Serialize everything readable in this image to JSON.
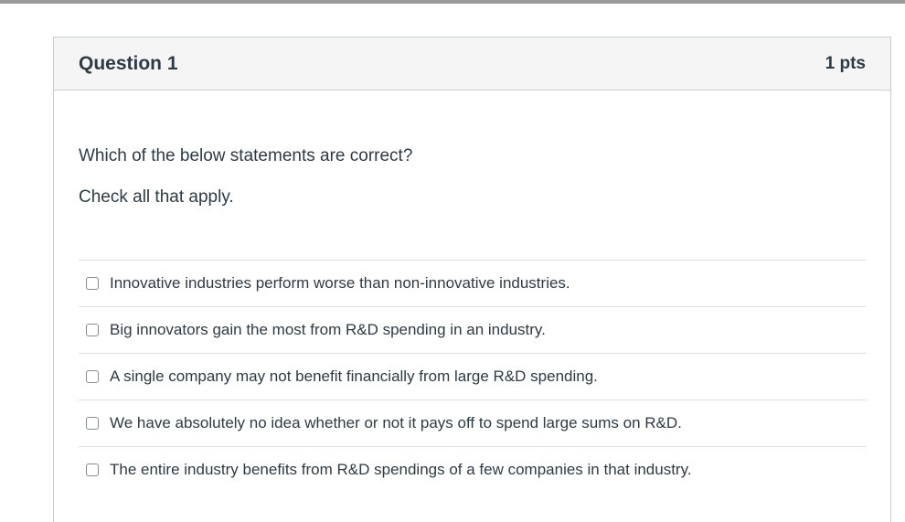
{
  "page": {
    "top_bar_color": "#9b9b9b",
    "background": "#ffffff"
  },
  "colors": {
    "ink": "#2d3b45",
    "header_background": "#f5f5f5",
    "card_border": "#c7cdd1",
    "divider": "#dde0e2",
    "checkbox_border": "#848c94"
  },
  "question": {
    "header": {
      "title": "Question 1",
      "points": "1 pts"
    },
    "prompt": [
      "Which of the below statements are correct?",
      "Check all that apply."
    ],
    "answers": [
      {
        "label": "Innovative industries perform worse than non-innovative industries.",
        "checked": false
      },
      {
        "label": "Big innovators gain the most from R&D spending in an industry.",
        "checked": false
      },
      {
        "label": "A single company may not benefit financially from large R&D spending.",
        "checked": false
      },
      {
        "label": "We have absolutely no idea whether or not it pays off to spend large sums on R&D.",
        "checked": false
      },
      {
        "label": "The entire industry benefits from R&D spendings of a few companies in that industry.",
        "checked": false
      }
    ]
  }
}
